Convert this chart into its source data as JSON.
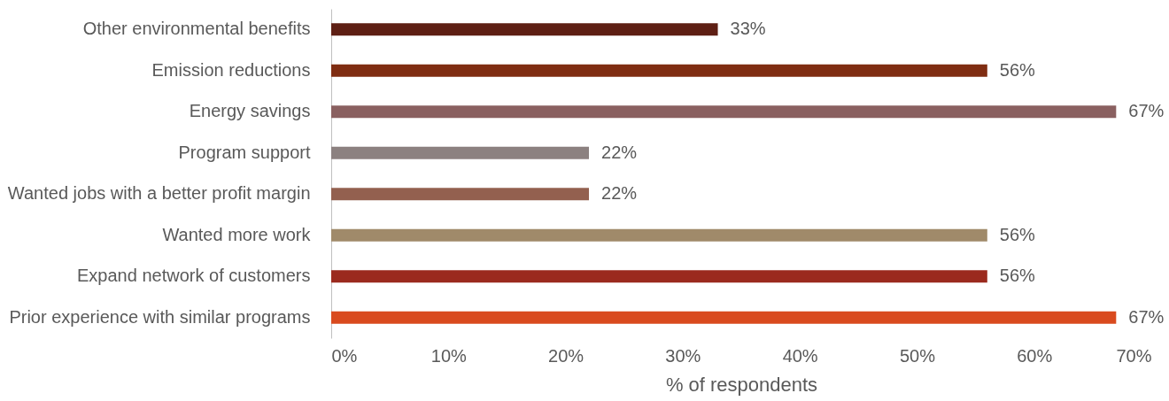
{
  "chart_data": {
    "type": "bar",
    "orientation": "horizontal",
    "xlabel": "% of respondents",
    "categories": [
      "Other environmental benefits",
      "Emission reductions",
      "Energy savings",
      "Program support",
      "Wanted jobs with a better profit margin",
      "Wanted more work",
      "Expand network of customers",
      "Prior experience with similar programs"
    ],
    "values": [
      33,
      56,
      67,
      22,
      22,
      56,
      56,
      67
    ],
    "colors": [
      "#5e1f14",
      "#7f2d12",
      "#8a6060",
      "#8c8180",
      "#93604f",
      "#a08a6a",
      "#9b2a1e",
      "#d94a1e"
    ],
    "value_labels": [
      "33%",
      "56%",
      "67%",
      "22%",
      "22%",
      "56%",
      "56%",
      "67%"
    ],
    "xlim": [
      0,
      70
    ],
    "xticks": [
      {
        "value": 0,
        "label": "0%"
      },
      {
        "value": 10,
        "label": "10%"
      },
      {
        "value": 20,
        "label": "20%"
      },
      {
        "value": 30,
        "label": "30%"
      },
      {
        "value": 40,
        "label": "40%"
      },
      {
        "value": 50,
        "label": "50%"
      },
      {
        "value": 60,
        "label": "60%"
      },
      {
        "value": 70,
        "label": "70%"
      }
    ],
    "grid": false
  }
}
